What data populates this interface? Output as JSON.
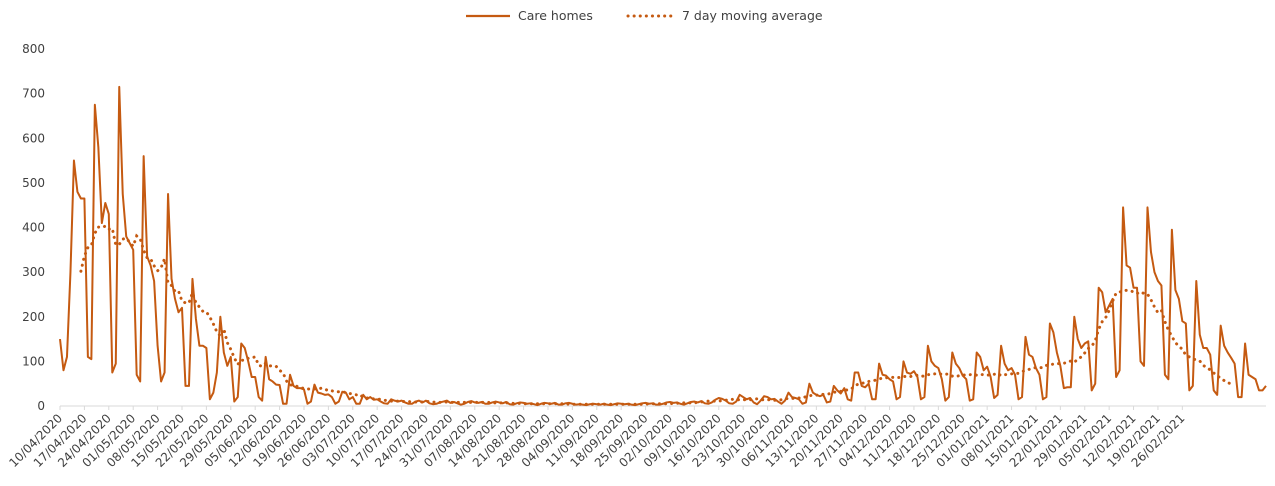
{
  "colors": {
    "series": "#c55a11",
    "axis": "#d9d9d9",
    "text": "#404040"
  },
  "chart_data": {
    "type": "line",
    "title": "",
    "xlabel": "",
    "ylabel": "",
    "ylim": [
      0,
      800
    ],
    "yticks": [
      0,
      100,
      200,
      300,
      400,
      500,
      600,
      700,
      800
    ],
    "grid": false,
    "legend_position": "top-center",
    "x_start": "10/04/2020",
    "x_end": "26/02/2021",
    "x_tick_labels": [
      "10/04/2020",
      "17/04/2020",
      "24/04/2020",
      "01/05/2020",
      "08/05/2020",
      "15/05/2020",
      "22/05/2020",
      "29/05/2020",
      "05/06/2020",
      "12/06/2020",
      "19/06/2020",
      "26/06/2020",
      "03/07/2020",
      "10/07/2020",
      "17/07/2020",
      "24/07/2020",
      "31/07/2020",
      "07/08/2020",
      "14/08/2020",
      "21/08/2020",
      "28/08/2020",
      "04/09/2020",
      "11/09/2020",
      "18/09/2020",
      "25/09/2020",
      "02/10/2020",
      "09/10/2020",
      "16/10/2020",
      "23/10/2020",
      "30/10/2020",
      "06/11/2020",
      "13/11/2020",
      "20/11/2020",
      "27/11/2020",
      "04/12/2020",
      "11/12/2020",
      "18/12/2020",
      "25/12/2020",
      "01/01/2021",
      "08/01/2021",
      "15/01/2021",
      "22/01/2021",
      "29/01/2021",
      "05/02/2021",
      "12/02/2021",
      "19/02/2021",
      "26/02/2021"
    ],
    "series": [
      {
        "name": "Care homes",
        "style": "solid",
        "values": [
          150,
          80,
          110,
          300,
          550,
          480,
          465,
          465,
          110,
          105,
          675,
          580,
          410,
          455,
          430,
          75,
          95,
          715,
          475,
          380,
          365,
          350,
          70,
          55,
          560,
          335,
          315,
          280,
          135,
          55,
          75,
          475,
          285,
          240,
          210,
          220,
          45,
          45,
          285,
          195,
          135,
          135,
          130,
          15,
          30,
          75,
          200,
          120,
          90,
          110,
          10,
          20,
          140,
          130,
          100,
          65,
          65,
          20,
          12,
          110,
          60,
          55,
          48,
          47,
          5,
          5,
          70,
          45,
          40,
          40,
          37,
          5,
          10,
          48,
          30,
          28,
          25,
          26,
          20,
          5,
          10,
          32,
          30,
          15,
          20,
          5,
          5,
          25,
          15,
          20,
          14,
          15,
          10,
          6,
          5,
          15,
          12,
          10,
          12,
          8,
          5,
          5,
          10,
          12,
          8,
          12,
          6,
          4,
          5,
          8,
          10,
          12,
          7,
          9,
          6,
          3,
          5,
          9,
          11,
          8,
          7,
          9,
          5,
          5,
          8,
          10,
          8,
          6,
          9,
          4,
          3,
          6,
          8,
          7,
          5,
          6,
          4,
          2,
          5,
          7,
          6,
          5,
          7,
          3,
          3,
          6,
          7,
          5,
          3,
          4,
          3,
          2,
          4,
          5,
          4,
          3,
          5,
          3,
          2,
          4,
          6,
          5,
          4,
          5,
          3,
          2,
          4,
          6,
          7,
          5,
          6,
          3,
          3,
          5,
          8,
          9,
          7,
          8,
          5,
          3,
          6,
          9,
          10,
          8,
          11,
          6,
          5,
          8,
          14,
          18,
          16,
          12,
          6,
          5,
          10,
          25,
          20,
          15,
          18,
          8,
          4,
          12,
          22,
          20,
          15,
          16,
          10,
          5,
          12,
          30,
          20,
          18,
          15,
          5,
          8,
          50,
          30,
          25,
          22,
          25,
          8,
          10,
          45,
          35,
          28,
          40,
          15,
          12,
          75,
          75,
          45,
          42,
          50,
          15,
          15,
          95,
          70,
          68,
          60,
          55,
          15,
          20,
          100,
          75,
          72,
          78,
          65,
          15,
          20,
          135,
          100,
          90,
          85,
          60,
          12,
          20,
          120,
          95,
          85,
          68,
          60,
          12,
          15,
          120,
          110,
          80,
          88,
          65,
          18,
          25,
          135,
          95,
          80,
          85,
          70,
          15,
          20,
          155,
          115,
          110,
          85,
          70,
          15,
          20,
          185,
          165,
          120,
          90,
          40,
          42,
          42,
          200,
          150,
          130,
          140,
          145,
          35,
          50,
          265,
          255,
          210,
          225,
          240,
          65,
          80,
          445,
          315,
          310,
          265,
          265,
          100,
          90,
          445,
          345,
          300,
          280,
          270,
          70,
          60,
          395,
          260,
          240,
          190,
          185,
          35,
          45,
          280,
          160,
          130,
          130,
          115,
          35,
          25,
          180,
          135,
          120,
          108,
          95,
          20,
          20,
          140,
          70,
          65,
          60,
          35,
          35,
          45
        ]
      },
      {
        "name": "7 day moving average",
        "style": "dotted",
        "values": [
          null,
          null,
          null,
          null,
          null,
          null,
          302,
          336,
          355,
          360,
          387,
          401,
          400,
          403,
          396,
          398,
          361,
          362,
          374,
          376,
          367,
          358,
          381,
          375,
          349,
          332,
          330,
          314,
          303,
          310,
          330,
          275,
          270,
          257,
          258,
          235,
          231,
          231,
          254,
          231,
          222,
          212,
          211,
          199,
          184,
          166,
          157,
          173,
          142,
          127,
          108,
          93,
          103,
          102,
          107,
          108,
          110,
          91,
          89,
          96,
          90,
          90,
          89,
          80,
          74,
          56,
          47,
          47,
          44,
          40,
          40,
          38,
          38,
          38,
          38,
          40,
          38,
          34,
          34,
          32,
          32,
          32,
          30,
          28,
          27,
          25,
          26,
          19,
          18,
          17,
          16,
          15,
          15,
          13,
          12,
          11,
          11,
          11,
          10,
          10,
          10,
          9,
          9,
          9,
          9,
          10,
          10,
          9,
          8,
          8,
          9,
          9,
          8,
          8,
          8,
          8,
          8,
          8,
          8,
          8,
          8,
          8,
          8,
          8,
          7,
          7,
          7,
          7,
          7,
          7,
          6,
          6,
          6,
          5,
          5,
          5,
          5,
          5,
          5,
          5,
          5,
          5,
          5,
          5,
          5,
          5,
          4,
          4,
          4,
          4,
          4,
          4,
          4,
          4,
          4,
          4,
          4,
          4,
          4,
          4,
          4,
          4,
          4,
          4,
          4,
          4,
          4,
          4,
          4,
          5,
          5,
          5,
          5,
          5,
          5,
          5,
          6,
          6,
          7,
          7,
          7,
          7,
          7,
          8,
          9,
          10,
          11,
          11,
          11,
          11,
          12,
          13,
          14,
          15,
          14,
          14,
          14,
          14,
          14,
          15,
          16,
          14,
          14,
          14,
          14,
          13,
          13,
          14,
          16,
          17,
          17,
          17,
          18,
          18,
          21,
          23,
          24,
          24,
          26,
          26,
          26,
          28,
          31,
          31,
          33,
          36,
          36,
          38,
          45,
          49,
          51,
          52,
          55,
          56,
          58,
          61,
          62,
          63,
          65,
          64,
          64,
          64,
          66,
          66,
          66,
          68,
          69,
          67,
          67,
          70,
          71,
          72,
          73,
          71,
          71,
          72,
          67,
          66,
          68,
          69,
          70,
          70,
          71,
          69,
          71,
          70,
          69,
          70,
          71,
          73,
          68,
          70,
          71,
          72,
          73,
          73,
          77,
          80,
          82,
          85,
          86,
          86,
          86,
          91,
          92,
          94,
          95,
          95,
          96,
          97,
          101,
          98,
          105,
          110,
          119,
          129,
          134,
          146,
          172,
          189,
          198,
          214,
          235,
          253,
          255,
          259,
          259,
          258,
          256,
          252,
          256,
          252,
          251,
          238,
          222,
          209,
          214,
          189,
          170,
          156,
          142,
          134,
          127,
          114,
          110,
          106,
          103,
          101,
          91,
          86,
          81,
          74,
          68,
          62,
          57,
          52,
          50
        ]
      }
    ]
  }
}
